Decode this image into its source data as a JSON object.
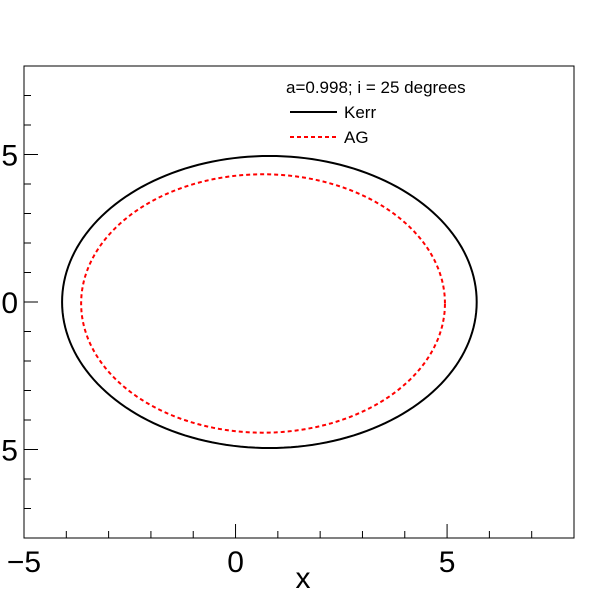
{
  "chart_data": {
    "type": "line",
    "xlabel": "x",
    "ylabel": "",
    "xlim": [
      -5,
      8
    ],
    "ylim": [
      -8,
      8
    ],
    "x_ticks": [
      -5,
      0,
      5
    ],
    "x_tick_labels": [
      "−5",
      "0",
      "5"
    ],
    "y_ticks": [
      -5,
      0,
      5
    ],
    "y_tick_labels": [
      "−5",
      "0",
      "5"
    ],
    "grid": false,
    "legend": {
      "placement": "top-right",
      "header": "a=0.998; i = 25 degrees"
    },
    "series": [
      {
        "name": "Kerr",
        "color": "#000000",
        "style": "solid",
        "shape": "closed-curve",
        "center": [
          0.8,
          0.0
        ],
        "semi_axes": [
          4.9,
          4.95
        ]
      },
      {
        "name": "AG",
        "color": "#ff0000",
        "style": "dashed",
        "shape": "closed-curve",
        "center": [
          0.65,
          -0.05
        ],
        "semi_axes": [
          4.3,
          4.38
        ]
      }
    ]
  }
}
